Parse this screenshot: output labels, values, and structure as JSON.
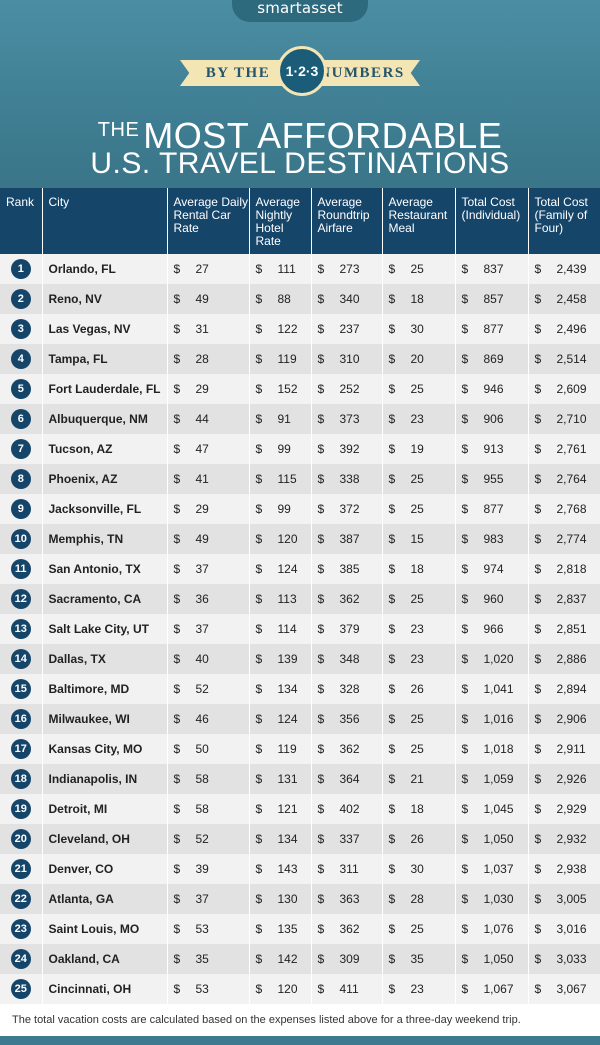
{
  "header": {
    "logo": "smartasset",
    "ribbon_left": "BY THE",
    "ribbon_badge": "1·2·3",
    "ribbon_right": "NUMBERS",
    "title_the": "THE",
    "title_line1": "MOST AFFORDABLE",
    "title_line2": "U.S. TRAVEL DESTINATIONS"
  },
  "columns": [
    "Rank",
    "City",
    "Average Daily Rental Car Rate",
    "Average Nightly Hotel Rate",
    "Average Roundtrip Airfare",
    "Average Restaurant Meal",
    "Total Cost (Individual)",
    "Total Cost (Family of Four)"
  ],
  "rows": [
    {
      "rank": "1",
      "city": "Orlando, FL",
      "car": "27",
      "hotel": "111",
      "air": "273",
      "meal": "25",
      "ind": "837",
      "fam": "2,439"
    },
    {
      "rank": "2",
      "city": "Reno, NV",
      "car": "49",
      "hotel": "88",
      "air": "340",
      "meal": "18",
      "ind": "857",
      "fam": "2,458"
    },
    {
      "rank": "3",
      "city": "Las Vegas, NV",
      "car": "31",
      "hotel": "122",
      "air": "237",
      "meal": "30",
      "ind": "877",
      "fam": "2,496"
    },
    {
      "rank": "4",
      "city": "Tampa, FL",
      "car": "28",
      "hotel": "119",
      "air": "310",
      "meal": "20",
      "ind": "869",
      "fam": "2,514"
    },
    {
      "rank": "5",
      "city": "Fort Lauderdale, FL",
      "car": "29",
      "hotel": "152",
      "air": "252",
      "meal": "25",
      "ind": "946",
      "fam": "2,609"
    },
    {
      "rank": "6",
      "city": "Albuquerque, NM",
      "car": "44",
      "hotel": "91",
      "air": "373",
      "meal": "23",
      "ind": "906",
      "fam": "2,710"
    },
    {
      "rank": "7",
      "city": "Tucson, AZ",
      "car": "47",
      "hotel": "99",
      "air": "392",
      "meal": "19",
      "ind": "913",
      "fam": "2,761"
    },
    {
      "rank": "8",
      "city": "Phoenix, AZ",
      "car": "41",
      "hotel": "115",
      "air": "338",
      "meal": "25",
      "ind": "955",
      "fam": "2,764"
    },
    {
      "rank": "9",
      "city": "Jacksonville, FL",
      "car": "29",
      "hotel": "99",
      "air": "372",
      "meal": "25",
      "ind": "877",
      "fam": "2,768"
    },
    {
      "rank": "10",
      "city": "Memphis, TN",
      "car": "49",
      "hotel": "120",
      "air": "387",
      "meal": "15",
      "ind": "983",
      "fam": "2,774"
    },
    {
      "rank": "11",
      "city": "San Antonio, TX",
      "car": "37",
      "hotel": "124",
      "air": "385",
      "meal": "18",
      "ind": "974",
      "fam": "2,818"
    },
    {
      "rank": "12",
      "city": "Sacramento, CA",
      "car": "36",
      "hotel": "113",
      "air": "362",
      "meal": "25",
      "ind": "960",
      "fam": "2,837"
    },
    {
      "rank": "13",
      "city": "Salt Lake City, UT",
      "car": "37",
      "hotel": "114",
      "air": "379",
      "meal": "23",
      "ind": "966",
      "fam": "2,851"
    },
    {
      "rank": "14",
      "city": "Dallas, TX",
      "car": "40",
      "hotel": "139",
      "air": "348",
      "meal": "23",
      "ind": "1,020",
      "fam": "2,886"
    },
    {
      "rank": "15",
      "city": "Baltimore, MD",
      "car": "52",
      "hotel": "134",
      "air": "328",
      "meal": "26",
      "ind": "1,041",
      "fam": "2,894"
    },
    {
      "rank": "16",
      "city": "Milwaukee, WI",
      "car": "46",
      "hotel": "124",
      "air": "356",
      "meal": "25",
      "ind": "1,016",
      "fam": "2,906"
    },
    {
      "rank": "17",
      "city": "Kansas City, MO",
      "car": "50",
      "hotel": "119",
      "air": "362",
      "meal": "25",
      "ind": "1,018",
      "fam": "2,911"
    },
    {
      "rank": "18",
      "city": "Indianapolis, IN",
      "car": "58",
      "hotel": "131",
      "air": "364",
      "meal": "21",
      "ind": "1,059",
      "fam": "2,926"
    },
    {
      "rank": "19",
      "city": "Detroit, MI",
      "car": "58",
      "hotel": "121",
      "air": "402",
      "meal": "18",
      "ind": "1,045",
      "fam": "2,929"
    },
    {
      "rank": "20",
      "city": "Cleveland, OH",
      "car": "52",
      "hotel": "134",
      "air": "337",
      "meal": "26",
      "ind": "1,050",
      "fam": "2,932"
    },
    {
      "rank": "21",
      "city": "Denver, CO",
      "car": "39",
      "hotel": "143",
      "air": "311",
      "meal": "30",
      "ind": "1,037",
      "fam": "2,938"
    },
    {
      "rank": "22",
      "city": "Atlanta, GA",
      "car": "37",
      "hotel": "130",
      "air": "363",
      "meal": "28",
      "ind": "1,030",
      "fam": "3,005"
    },
    {
      "rank": "23",
      "city": "Saint Louis, MO",
      "car": "53",
      "hotel": "135",
      "air": "362",
      "meal": "25",
      "ind": "1,076",
      "fam": "3,016"
    },
    {
      "rank": "24",
      "city": "Oakland, CA",
      "car": "35",
      "hotel": "142",
      "air": "309",
      "meal": "35",
      "ind": "1,050",
      "fam": "3,033"
    },
    {
      "rank": "25",
      "city": "Cincinnati, OH",
      "car": "53",
      "hotel": "120",
      "air": "411",
      "meal": "23",
      "ind": "1,067",
      "fam": "3,067"
    }
  ],
  "currency": "$",
  "footer": "The total vacation costs are calculated based on the expenses listed above for a three-day weekend trip.",
  "colors": {
    "header_bg": "#3f7e93",
    "table_head": "#16456a",
    "ribbon": "#f4e5b5"
  }
}
